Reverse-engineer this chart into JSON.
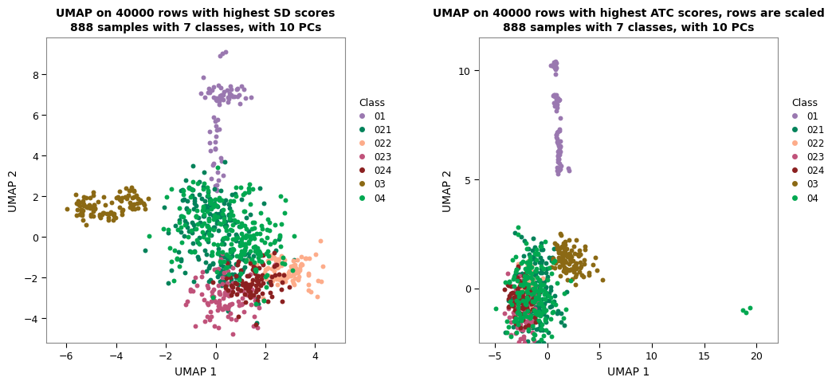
{
  "title1": "UMAP on 40000 rows with highest SD scores\n888 samples with 7 classes, with 10 PCs",
  "title2": "UMAP on 40000 rows with highest ATC scores, rows are scaled\n888 samples with 7 classes, with 10 PCs",
  "xlabel": "UMAP 1",
  "ylabel": "UMAP 2",
  "classes": [
    "01",
    "021",
    "022",
    "023",
    "024",
    "03",
    "04"
  ],
  "colors": [
    "#9A78B0",
    "#00825A",
    "#FDAC8A",
    "#C0527A",
    "#8B2020",
    "#8B6914",
    "#00A850"
  ],
  "plot1": {
    "xlim": [
      -6.8,
      5.2
    ],
    "ylim": [
      -5.2,
      9.8
    ],
    "xticks": [
      -6,
      -4,
      -2,
      0,
      2,
      4
    ],
    "yticks": [
      -4,
      -2,
      0,
      2,
      4,
      6,
      8
    ]
  },
  "plot2": {
    "xlim": [
      -6.5,
      22.0
    ],
    "ylim": [
      -2.5,
      11.5
    ],
    "xticks": [
      -5,
      0,
      5,
      10,
      15,
      20
    ],
    "yticks": [
      0,
      5,
      10
    ]
  }
}
